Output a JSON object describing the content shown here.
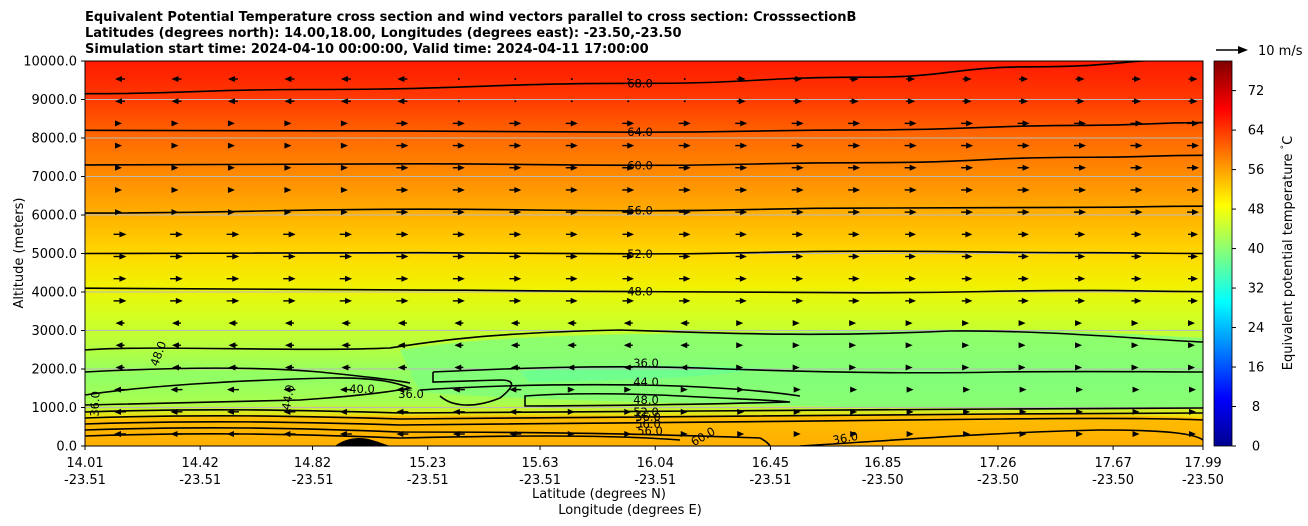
{
  "chart_data": {
    "type": "cross-section contour (filled contours, contour lines, wind vectors)",
    "title_lines": [
      "Equivalent Potential Temperature cross section and wind vectors parallel to cross section: CrosssectionB",
      "Latitudes (degrees north): 14.00,18.00, Longitudes (degrees east): -23.50,-23.50",
      "Simulation start time: 2024-04-10 00:00:00, Valid time: 2024-04-11 17:00:00"
    ],
    "ylabel": "Altitude (meters)",
    "xlabel_lat": "Latitude (degrees N)",
    "xlabel_lon": "Longitude (degrees E)",
    "ylim": [
      0,
      10000
    ],
    "yticks": [
      "0.0",
      "1000.0",
      "2000.0",
      "3000.0",
      "4000.0",
      "5000.0",
      "6000.0",
      "7000.0",
      "8000.0",
      "9000.0",
      "10000.0"
    ],
    "xlim": [
      14.01,
      17.99
    ],
    "xticks": [
      {
        "lat": "14.01",
        "lon": "-23.51"
      },
      {
        "lat": "14.42",
        "lon": "-23.51"
      },
      {
        "lat": "14.82",
        "lon": "-23.51"
      },
      {
        "lat": "15.23",
        "lon": "-23.51"
      },
      {
        "lat": "15.63",
        "lon": "-23.51"
      },
      {
        "lat": "16.04",
        "lon": "-23.51"
      },
      {
        "lat": "16.45",
        "lon": "-23.51"
      },
      {
        "lat": "16.85",
        "lon": "-23.50"
      },
      {
        "lat": "17.26",
        "lon": "-23.50"
      },
      {
        "lat": "17.67",
        "lon": "-23.50"
      },
      {
        "lat": "17.99",
        "lon": "-23.50"
      }
    ],
    "colorbar": {
      "label": "Equivalent potential temperature $^\\circ$C",
      "range": [
        0,
        78
      ],
      "ticks": [
        "0",
        "8",
        "16",
        "24",
        "32",
        "40",
        "48",
        "56",
        "64",
        "72"
      ]
    },
    "quiver_key": "10 m/s",
    "contour_lines": [
      {
        "value": 68,
        "label": "68.0",
        "levels": [
          [
            0,
            9150
          ],
          [
            0.2,
            9260
          ],
          [
            0.5,
            9420
          ],
          [
            0.7,
            9580
          ],
          [
            0.85,
            9850
          ],
          [
            1,
            10050
          ]
        ]
      },
      {
        "value": 64,
        "label": "64.0",
        "levels": [
          [
            0,
            8200
          ],
          [
            0.3,
            8180
          ],
          [
            0.5,
            8150
          ],
          [
            0.7,
            8210
          ],
          [
            0.9,
            8330
          ],
          [
            1,
            8400
          ]
        ]
      },
      {
        "value": 60,
        "label": "60.0",
        "levels": [
          [
            0,
            7300
          ],
          [
            0.3,
            7330
          ],
          [
            0.5,
            7290
          ],
          [
            0.7,
            7360
          ],
          [
            0.9,
            7500
          ],
          [
            1,
            7550
          ]
        ]
      },
      {
        "value": 56,
        "label": "56.0",
        "levels": [
          [
            0,
            6050
          ],
          [
            0.3,
            6150
          ],
          [
            0.5,
            6110
          ],
          [
            0.7,
            6180
          ],
          [
            0.9,
            6200
          ],
          [
            1,
            6230
          ]
        ]
      },
      {
        "value": 52,
        "label": "52.0",
        "levels": [
          [
            0,
            5000
          ],
          [
            0.3,
            5020
          ],
          [
            0.5,
            4990
          ],
          [
            0.7,
            5060
          ],
          [
            0.9,
            5020
          ],
          [
            1,
            5000
          ]
        ]
      },
      {
        "value": 48,
        "label": "48.0",
        "levels": [
          [
            0,
            4100
          ],
          [
            0.3,
            4050
          ],
          [
            0.5,
            4010
          ],
          [
            0.7,
            3980
          ],
          [
            0.9,
            4040
          ],
          [
            1,
            4010
          ]
        ]
      }
    ],
    "contour_labels_low": [
      "48.0",
      "36.0",
      "44.0",
      "40.0",
      "36.0",
      "36.0",
      "44.0",
      "48.0",
      "52.0",
      "56.0",
      "56.0",
      "56.0",
      "60.0",
      "36.0"
    ]
  }
}
